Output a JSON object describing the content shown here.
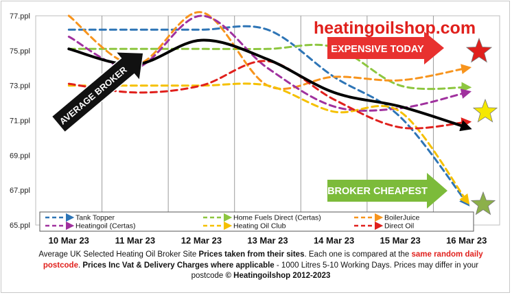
{
  "chart_data": {
    "type": "line",
    "categories": [
      "10 Mar 23",
      "11 Mar 23",
      "12 Mar 23",
      "13 Mar 23",
      "14 Mar 23",
      "15 Mar 23",
      "16 Mar 23"
    ],
    "y_ticks": [
      "77.ppl",
      "75.ppl",
      "73.ppl",
      "71.ppl",
      "69.ppl",
      "67.ppl",
      "65.ppl"
    ],
    "ylim": [
      65,
      77
    ],
    "grid": "vertical",
    "series": [
      {
        "name": "Tank Topper",
        "color": "#2e75b6",
        "style": "dashed",
        "values": [
          76.2,
          76.2,
          76.2,
          76.2,
          73.5,
          71.2,
          66.3
        ]
      },
      {
        "name": "Home Fuels Direct (Certas)",
        "color": "#8dc63f",
        "style": "dashed",
        "values": [
          75.1,
          75.1,
          75.1,
          75.1,
          75.2,
          73.0,
          72.9
        ]
      },
      {
        "name": "BoilerJuice",
        "color": "#f7941d",
        "style": "dashed",
        "values": [
          77.0,
          74.2,
          77.2,
          73.0,
          73.5,
          73.3,
          74.0
        ]
      },
      {
        "name": "Heatingoil (Certas)",
        "color": "#a0319e",
        "style": "dashed",
        "values": [
          75.8,
          74.0,
          77.0,
          74.0,
          71.8,
          71.7,
          72.6
        ]
      },
      {
        "name": "Heating Oil Club",
        "color": "#f5c000",
        "style": "dashed",
        "values": [
          73.0,
          73.0,
          73.0,
          73.0,
          71.5,
          71.5,
          66.4
        ]
      },
      {
        "name": "Direct Oil",
        "color": "#e0201c",
        "style": "dashed",
        "values": [
          73.1,
          72.6,
          73.0,
          74.4,
          72.2,
          70.6,
          70.9
        ]
      },
      {
        "name": "Average Broker",
        "color": "#000000",
        "style": "solid",
        "values": [
          75.1,
          74.2,
          75.6,
          74.5,
          72.6,
          71.8,
          70.6
        ]
      }
    ],
    "legend": {
      "placement": "bottom-inside",
      "entries": [
        "Tank Topper",
        "Home Fuels Direct (Certas)",
        "BoilerJuice",
        "Heatingoil (Certas)",
        "Heating Oil Club",
        "Direct Oil"
      ]
    },
    "annotations": {
      "logo": "heatingoilshop.com",
      "expensive": "EXPENSIVE TODAY",
      "cheapest": "BROKER CHEAPEST",
      "average": "AVERAGE BROKER"
    },
    "colors": {
      "expensive_banner": "#e8312f",
      "cheapest_banner": "#7cbb3a",
      "star_red": "#e0201c",
      "star_yellow": "#f5e800",
      "star_green": "#8cb04a"
    }
  },
  "footer": {
    "part1": "Average UK Selected Heating  Oil Broker Site ",
    "bold1": "Prices taken from their sites",
    "part2": ". Each one is compared at the ",
    "red1": "same random daily postcode",
    "part3": ".  ",
    "bold2": "Prices Inc Vat & Delivery Charges where applicable",
    "part4": "  - 1000 Litres 5-10 Working Days. Prices may differ in your postcode  ",
    "bold3": "© Heatingoilshop 2012-2023"
  }
}
